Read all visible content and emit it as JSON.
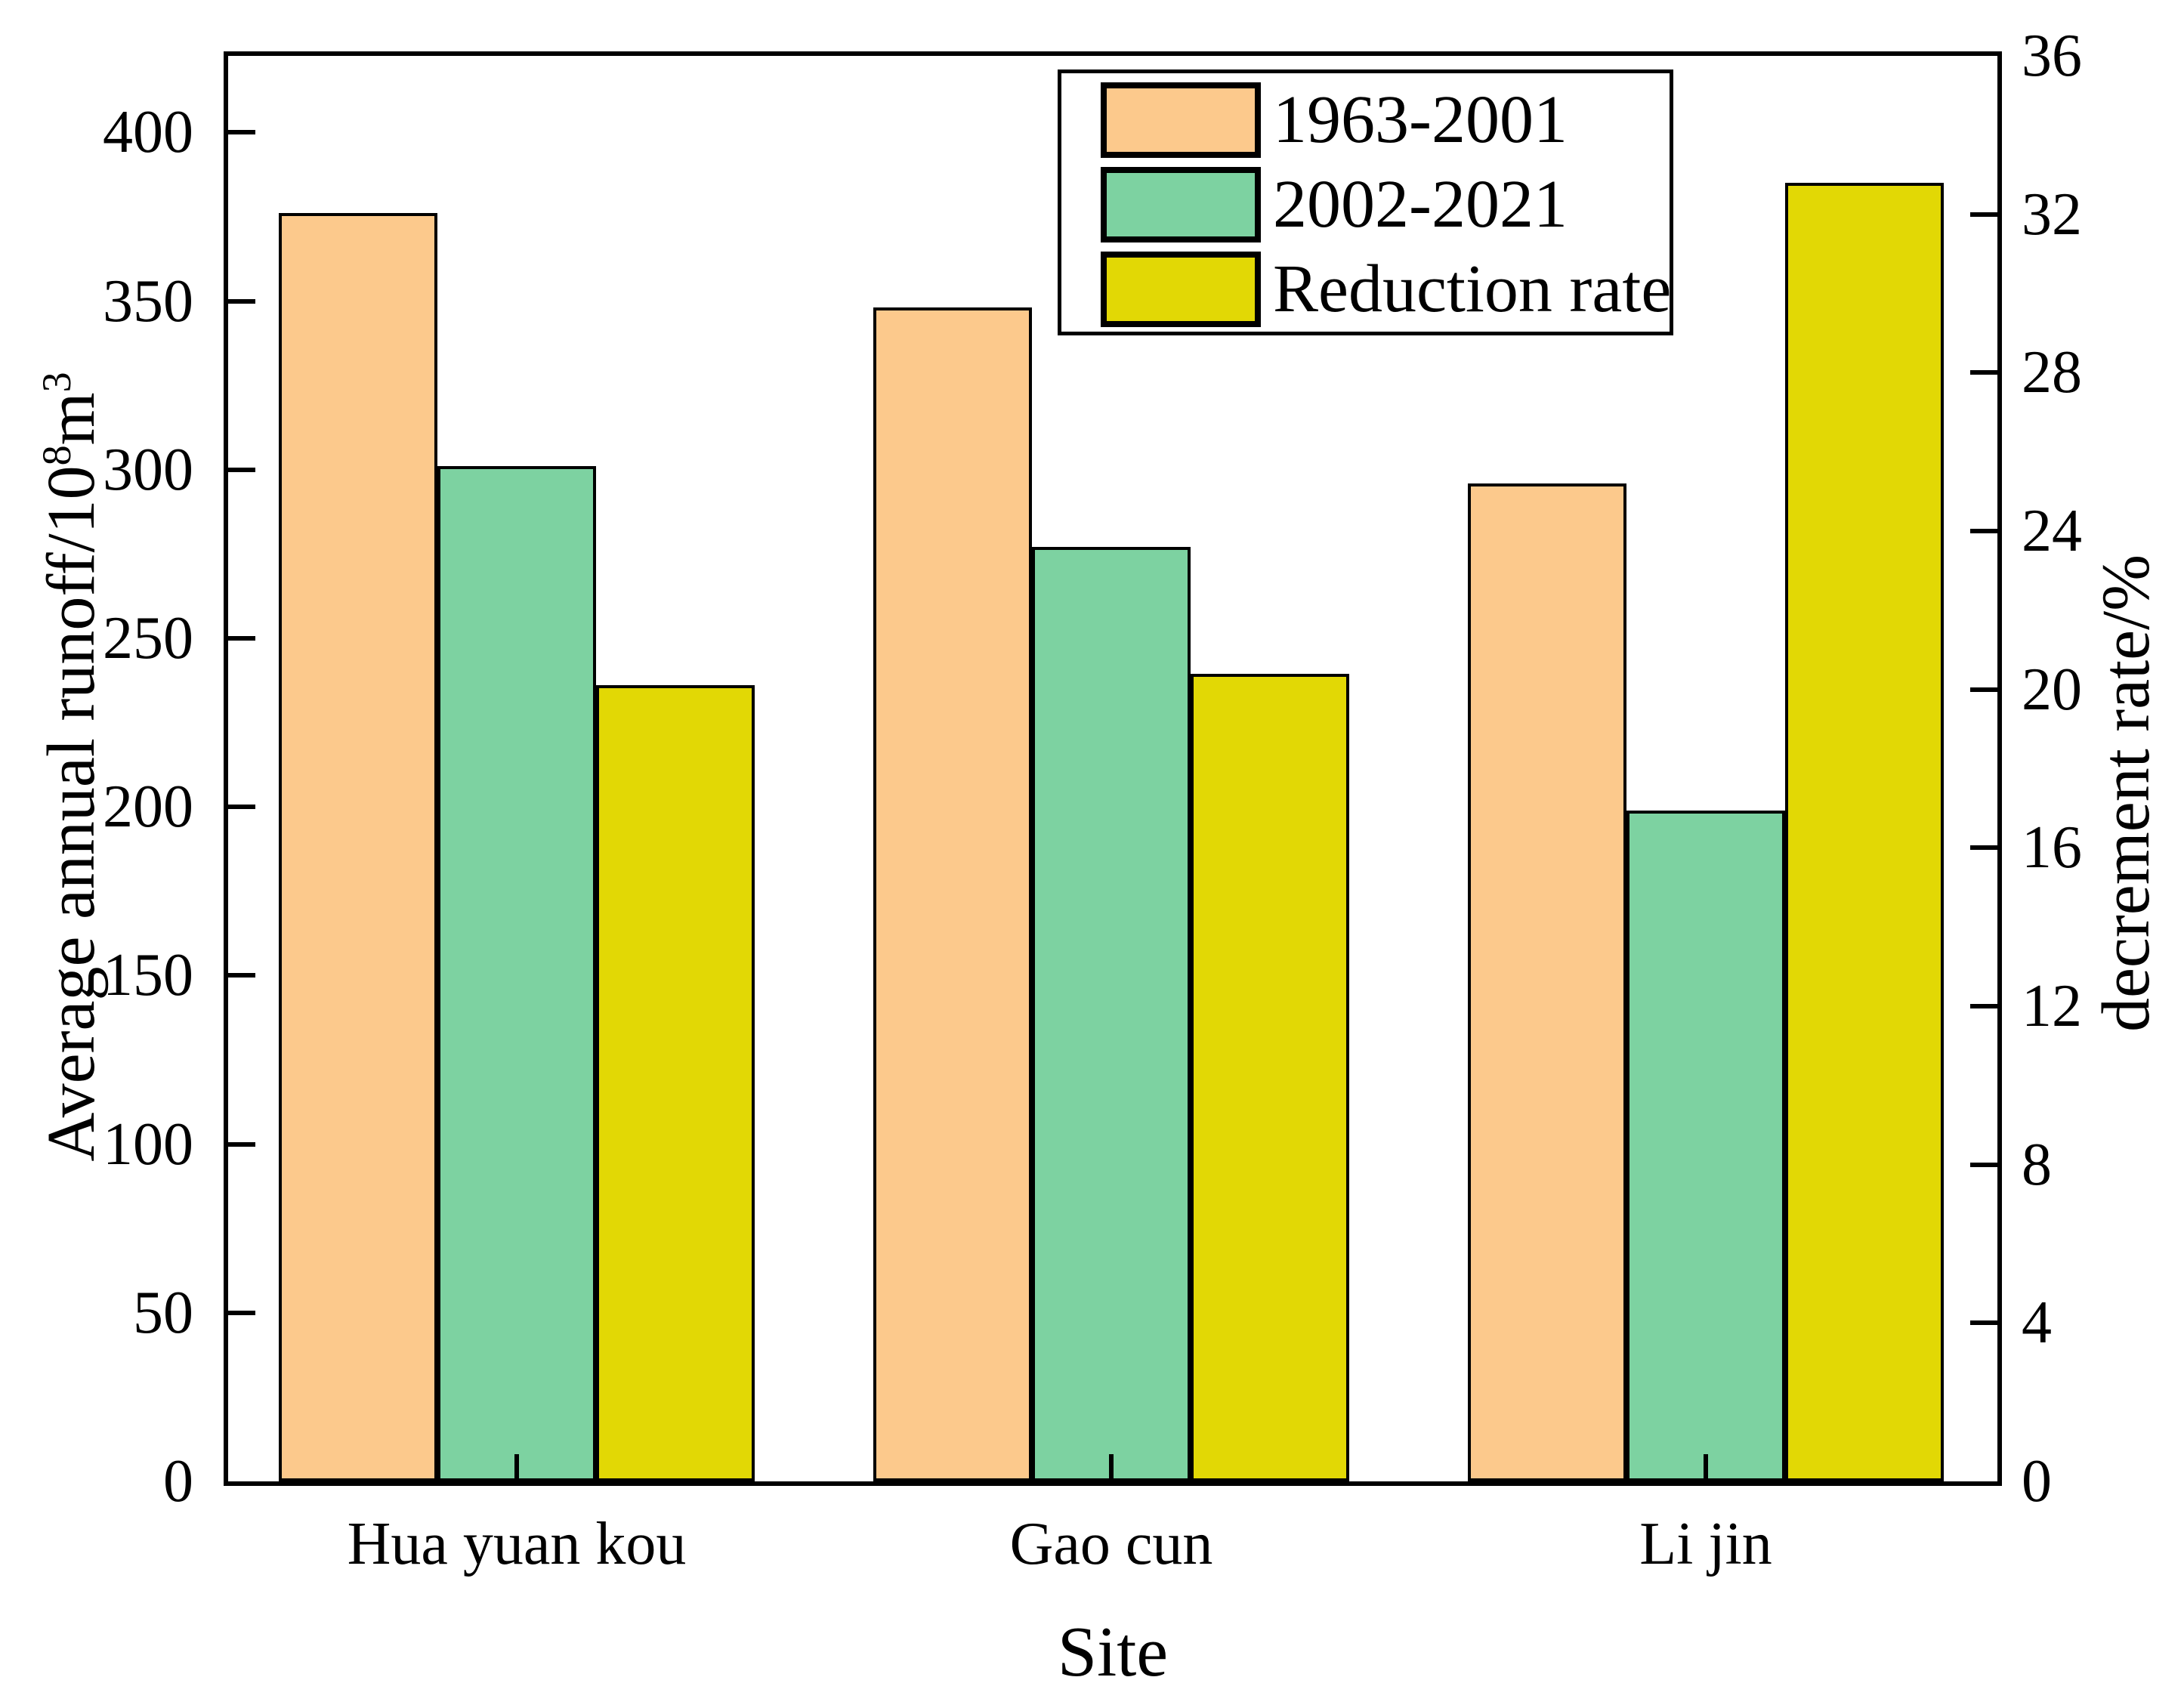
{
  "figure": {
    "x_axis": {
      "title": "Site",
      "categories": [
        "Hua yuan kou",
        "Gao cun",
        "Li jin"
      ]
    },
    "y_axis_left": {
      "title_prefix": "Average annual runoff/10",
      "title_sup1": "8",
      "title_mid": "m",
      "title_sup2": "3",
      "ticks": [
        0,
        50,
        100,
        150,
        200,
        250,
        300,
        350,
        400
      ],
      "max": 422.7
    },
    "y_axis_right": {
      "title": "decrement rate/%",
      "ticks": [
        0,
        4,
        8,
        12,
        16,
        20,
        24,
        28,
        32,
        36
      ],
      "max": 36
    },
    "colors": {
      "series1": "#FCC98C",
      "series2": "#7DD2A1",
      "series3": "#E2D805",
      "bar_edge": "#000000"
    }
  },
  "chart_data": {
    "type": "bar",
    "categories": [
      "Hua yuan kou",
      "Gao cun",
      "Li jin"
    ],
    "series": [
      {
        "name": "1963-2001",
        "axis": "left",
        "color": "#FCC98C",
        "values": [
          376,
          348,
          296
        ]
      },
      {
        "name": "2002-2021",
        "axis": "left",
        "color": "#7DD2A1",
        "values": [
          301,
          277,
          199
        ]
      },
      {
        "name": "Reduction rate",
        "axis": "right",
        "color": "#E2D805",
        "values": [
          20.1,
          20.4,
          32.8
        ]
      }
    ],
    "xlabel": "Site",
    "ylabel_left": "Average annual runoff/10^8 m^3",
    "ylabel_right": "decrement rate/%",
    "ylim_left": [
      0,
      422.7
    ],
    "ylim_right": [
      0,
      36
    ],
    "left_tick_step": 50,
    "right_tick_step": 4,
    "grid": false,
    "bar_edge_color": "#000000",
    "legend_position": "upper center-right",
    "tick_direction": "in"
  }
}
